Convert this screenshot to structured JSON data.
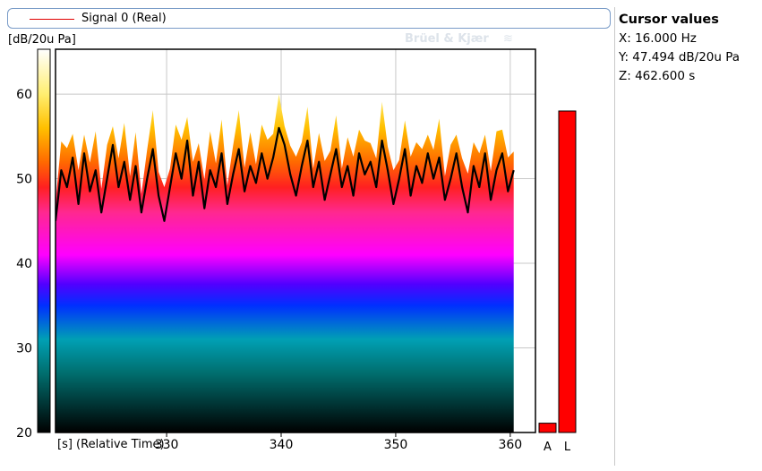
{
  "legend": {
    "signal_label": "Signal 0 (Real)",
    "line_color": "#e00000"
  },
  "unit_label": "[dB/20u Pa]",
  "watermark": "Brüel & Kjær",
  "cursor_panel": {
    "title": "Cursor values",
    "x": "X: 16.000 Hz",
    "y": "Y: 47.494 dB/20u Pa",
    "z": "Z: 462.600 s"
  },
  "chart_data": {
    "type": "area",
    "xlabel": "[s] (Relative Time)",
    "ylabel": "[dB/20u Pa]",
    "xlim": [
      320.3,
      362.2
    ],
    "ylim": [
      20,
      65.3
    ],
    "x_ticks": [
      330,
      340,
      350,
      360
    ],
    "y_ticks": [
      20,
      30,
      40,
      50,
      60
    ],
    "grid": true,
    "colormap_stops": [
      {
        "db": 20,
        "color": "#000000"
      },
      {
        "db": 27,
        "color": "#006e6e"
      },
      {
        "db": 31,
        "color": "#00a0b4"
      },
      {
        "db": 35,
        "color": "#0030ff"
      },
      {
        "db": 37.5,
        "color": "#5000ff"
      },
      {
        "db": 41,
        "color": "#ff00ff"
      },
      {
        "db": 46,
        "color": "#ff2890"
      },
      {
        "db": 49,
        "color": "#ff2020"
      },
      {
        "db": 52,
        "color": "#ff6a00"
      },
      {
        "db": 56,
        "color": "#ffc000"
      },
      {
        "db": 60,
        "color": "#ffee70"
      },
      {
        "db": 65.3,
        "color": "#ffffff"
      }
    ],
    "series": [
      {
        "values": [
          {
            "x": 320.3,
            "y": 45
          },
          {
            "x": 320.8,
            "y": 51
          },
          {
            "x": 321.3,
            "y": 49
          },
          {
            "x": 321.8,
            "y": 52.5
          },
          {
            "x": 322.3,
            "y": 47
          },
          {
            "x": 322.8,
            "y": 53
          },
          {
            "x": 323.3,
            "y": 48.5
          },
          {
            "x": 323.8,
            "y": 51
          },
          {
            "x": 324.3,
            "y": 46
          },
          {
            "x": 324.8,
            "y": 50
          },
          {
            "x": 325.3,
            "y": 54
          },
          {
            "x": 325.8,
            "y": 49
          },
          {
            "x": 326.3,
            "y": 52
          },
          {
            "x": 326.8,
            "y": 47.5
          },
          {
            "x": 327.3,
            "y": 51.5
          },
          {
            "x": 327.8,
            "y": 46
          },
          {
            "x": 328.3,
            "y": 50
          },
          {
            "x": 328.8,
            "y": 53.5
          },
          {
            "x": 329.3,
            "y": 48
          },
          {
            "x": 329.8,
            "y": 45
          },
          {
            "x": 330.3,
            "y": 49
          },
          {
            "x": 330.8,
            "y": 53
          },
          {
            "x": 331.3,
            "y": 50
          },
          {
            "x": 331.8,
            "y": 54.5
          },
          {
            "x": 332.3,
            "y": 48
          },
          {
            "x": 332.8,
            "y": 52
          },
          {
            "x": 333.3,
            "y": 46.5
          },
          {
            "x": 333.8,
            "y": 51
          },
          {
            "x": 334.3,
            "y": 49
          },
          {
            "x": 334.8,
            "y": 53
          },
          {
            "x": 335.3,
            "y": 47
          },
          {
            "x": 335.8,
            "y": 50.5
          },
          {
            "x": 336.3,
            "y": 53.5
          },
          {
            "x": 336.8,
            "y": 48.5
          },
          {
            "x": 337.3,
            "y": 51.5
          },
          {
            "x": 337.8,
            "y": 49.5
          },
          {
            "x": 338.3,
            "y": 53
          },
          {
            "x": 338.8,
            "y": 50
          },
          {
            "x": 339.3,
            "y": 52.5
          },
          {
            "x": 339.8,
            "y": 56
          },
          {
            "x": 340.3,
            "y": 54
          },
          {
            "x": 340.8,
            "y": 50.5
          },
          {
            "x": 341.3,
            "y": 48
          },
          {
            "x": 341.8,
            "y": 51.5
          },
          {
            "x": 342.3,
            "y": 54.5
          },
          {
            "x": 342.8,
            "y": 49
          },
          {
            "x": 343.3,
            "y": 52
          },
          {
            "x": 343.8,
            "y": 47.5
          },
          {
            "x": 344.3,
            "y": 50.5
          },
          {
            "x": 344.8,
            "y": 53.5
          },
          {
            "x": 345.3,
            "y": 49
          },
          {
            "x": 345.8,
            "y": 51.5
          },
          {
            "x": 346.3,
            "y": 48
          },
          {
            "x": 346.8,
            "y": 53
          },
          {
            "x": 347.3,
            "y": 50.5
          },
          {
            "x": 347.8,
            "y": 52
          },
          {
            "x": 348.3,
            "y": 49
          },
          {
            "x": 348.8,
            "y": 54.5
          },
          {
            "x": 349.3,
            "y": 51
          },
          {
            "x": 349.8,
            "y": 47
          },
          {
            "x": 350.3,
            "y": 50
          },
          {
            "x": 350.8,
            "y": 53.5
          },
          {
            "x": 351.3,
            "y": 48
          },
          {
            "x": 351.8,
            "y": 51.5
          },
          {
            "x": 352.3,
            "y": 49.5
          },
          {
            "x": 352.8,
            "y": 53
          },
          {
            "x": 353.3,
            "y": 50
          },
          {
            "x": 353.8,
            "y": 52.5
          },
          {
            "x": 354.3,
            "y": 47.5
          },
          {
            "x": 354.8,
            "y": 50
          },
          {
            "x": 355.3,
            "y": 53
          },
          {
            "x": 355.8,
            "y": 49
          },
          {
            "x": 356.3,
            "y": 46
          },
          {
            "x": 356.8,
            "y": 51.5
          },
          {
            "x": 357.3,
            "y": 49
          },
          {
            "x": 357.8,
            "y": 53
          },
          {
            "x": 358.3,
            "y": 47.5
          },
          {
            "x": 358.8,
            "y": 51
          },
          {
            "x": 359.3,
            "y": 53
          },
          {
            "x": 359.8,
            "y": 48.5
          },
          {
            "x": 360.3,
            "y": 51
          }
        ]
      }
    ],
    "bars": [
      {
        "label": "A",
        "value": 21.1,
        "color": "#ff0000"
      },
      {
        "label": "L",
        "value": 58.0,
        "color": "#ff0000"
      }
    ]
  }
}
